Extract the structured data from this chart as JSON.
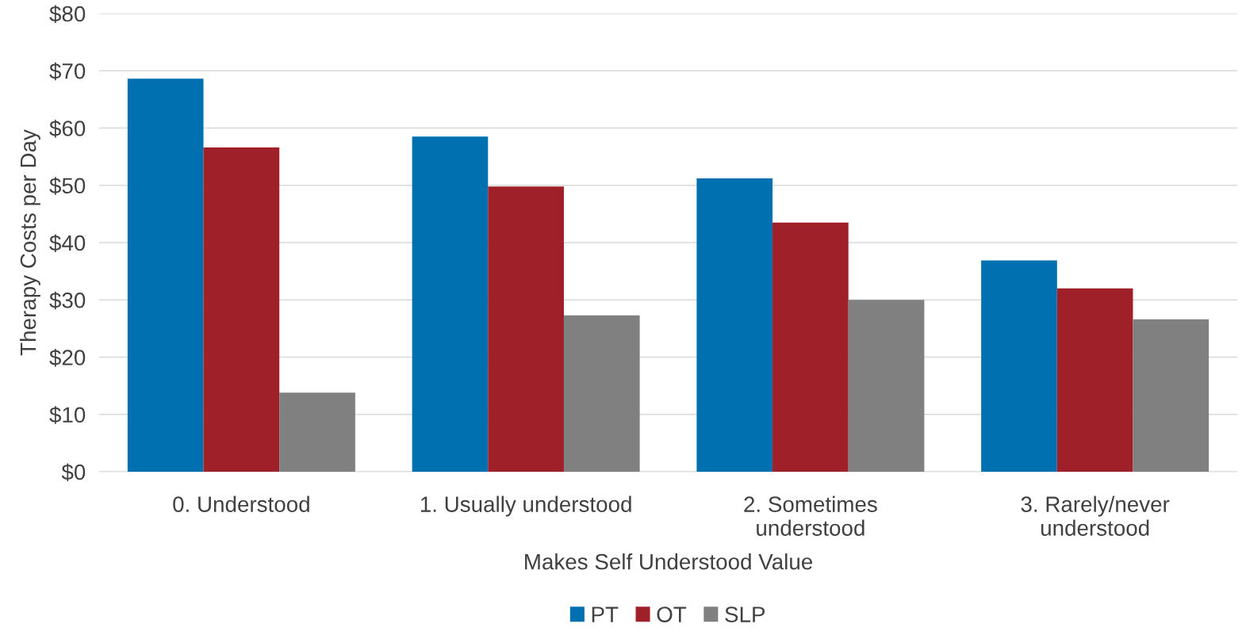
{
  "chart_data": {
    "type": "bar",
    "xlabel": "Makes Self Understood Value",
    "ylabel": "Therapy Costs per Day",
    "categories": [
      "0. Understood",
      "1. Usually understood",
      "2. Sometimes\nunderstood",
      "3. Rarely/never\nunderstood"
    ],
    "series": [
      {
        "name": "PT",
        "color": "#0070b0",
        "values": [
          68.6,
          58.5,
          51.2,
          36.9
        ]
      },
      {
        "name": "OT",
        "color": "#a0202a",
        "values": [
          56.6,
          49.8,
          43.5,
          32.0
        ]
      },
      {
        "name": "SLP",
        "color": "#808080",
        "values": [
          13.8,
          27.3,
          30.0,
          26.6
        ]
      }
    ],
    "ylim": [
      0,
      80
    ],
    "yticks": [
      {
        "value": 0,
        "label": "$0"
      },
      {
        "value": 10,
        "label": "$10"
      },
      {
        "value": 20,
        "label": "$20"
      },
      {
        "value": 30,
        "label": "$30"
      },
      {
        "value": 40,
        "label": "$40"
      },
      {
        "value": 50,
        "label": "$50"
      },
      {
        "value": 60,
        "label": "$60"
      },
      {
        "value": 70,
        "label": "$70"
      },
      {
        "value": 80,
        "label": "$80"
      }
    ],
    "grid": "y",
    "legend": "bottom"
  }
}
